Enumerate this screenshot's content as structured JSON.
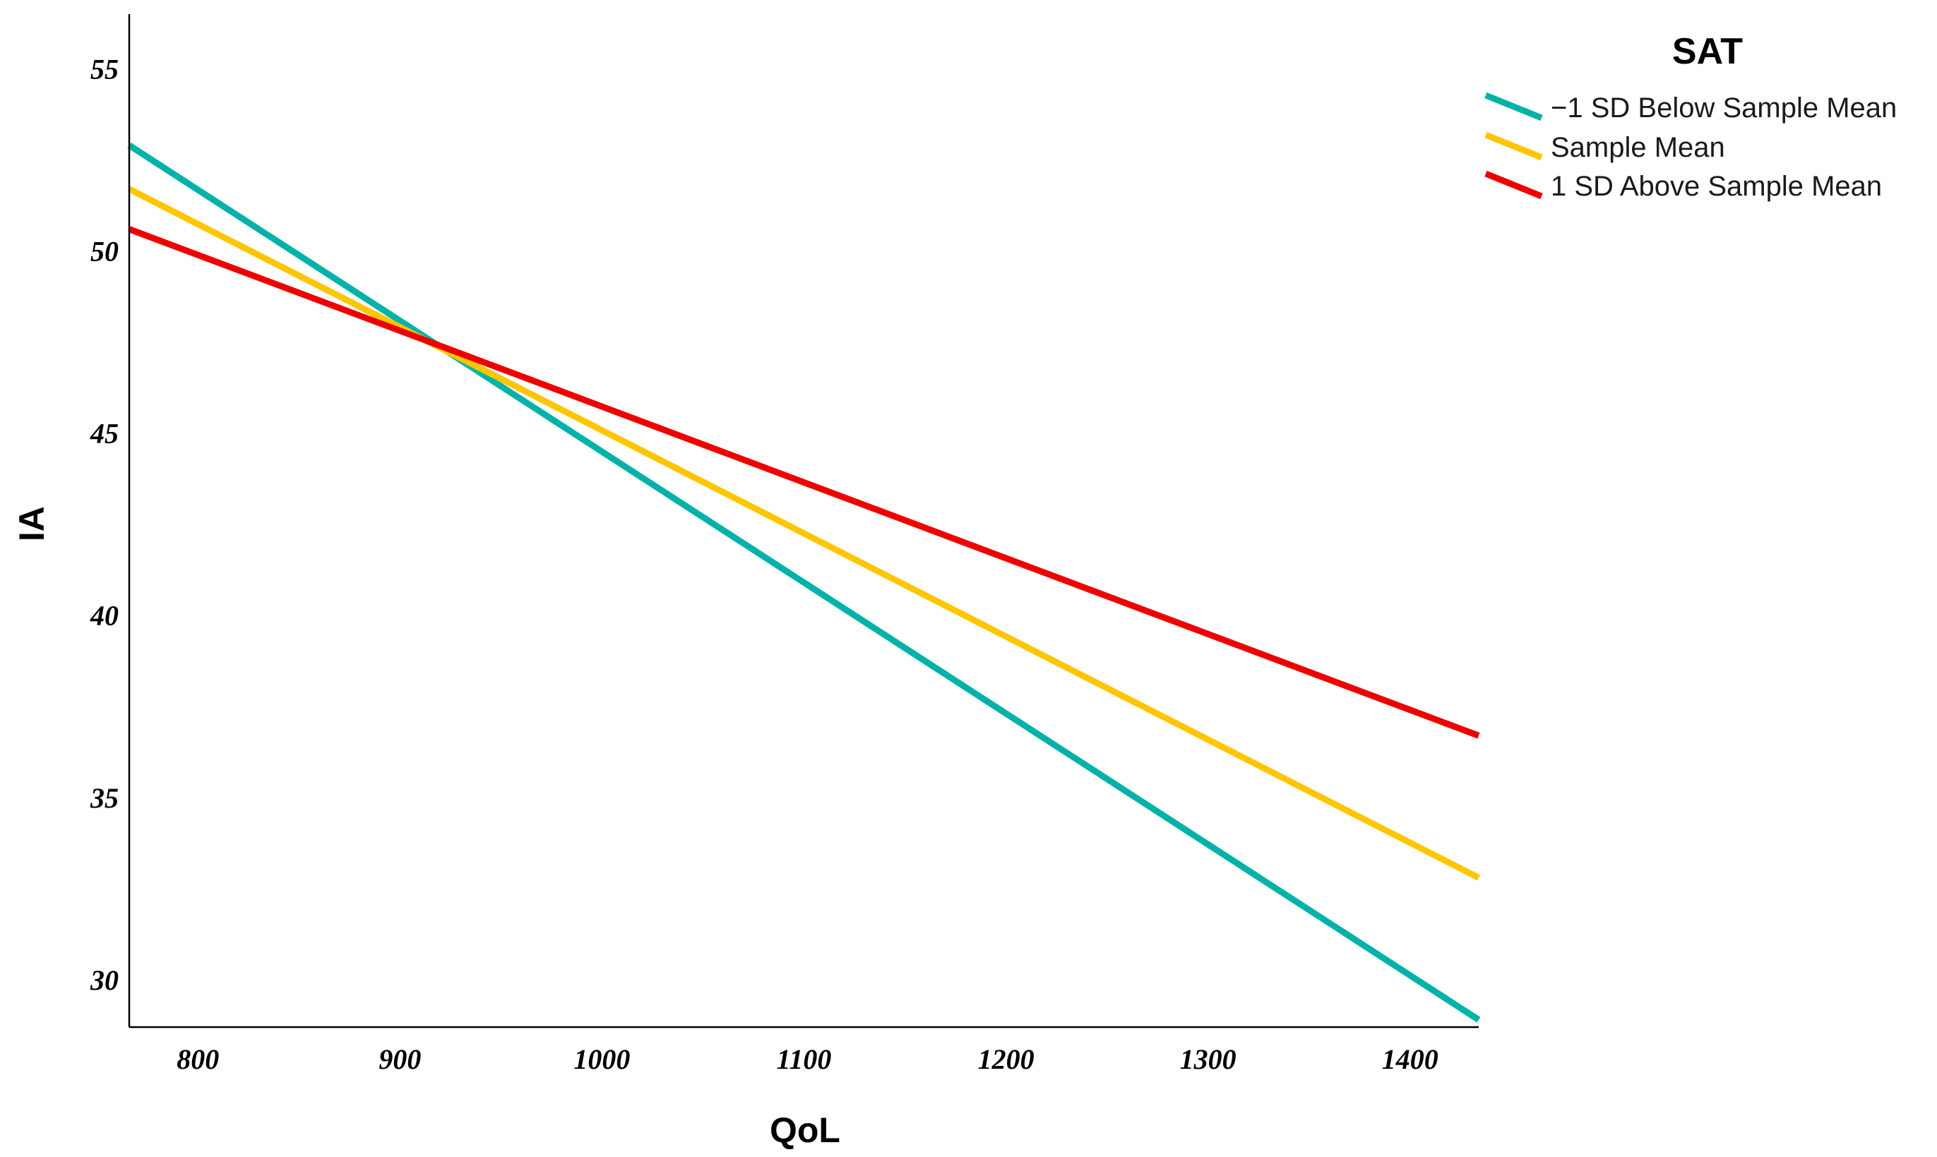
{
  "chart_data": {
    "type": "line",
    "title": "",
    "xlabel": "QoL",
    "ylabel": "IA",
    "xlim": [
      766,
      1434
    ],
    "ylim": [
      28.7,
      56.5
    ],
    "x_ticks": [
      800,
      900,
      1000,
      1100,
      1200,
      1300,
      1400
    ],
    "y_ticks": [
      30,
      35,
      40,
      45,
      50,
      55
    ],
    "grid": false,
    "legend": {
      "title": "SAT",
      "placement": "top-right"
    },
    "series": [
      {
        "name": "−1 SD Below Sample Mean",
        "color": "#00b2a9",
        "points": [
          [
            766,
            52.9
          ],
          [
            1434,
            28.9
          ]
        ]
      },
      {
        "name": "Sample Mean",
        "color": "#ffc600",
        "points": [
          [
            766,
            51.7
          ],
          [
            1434,
            32.8
          ]
        ]
      },
      {
        "name": "1 SD Above Sample Mean",
        "color": "#ee0000",
        "points": [
          [
            766,
            50.6
          ],
          [
            1434,
            36.7
          ]
        ]
      }
    ]
  }
}
